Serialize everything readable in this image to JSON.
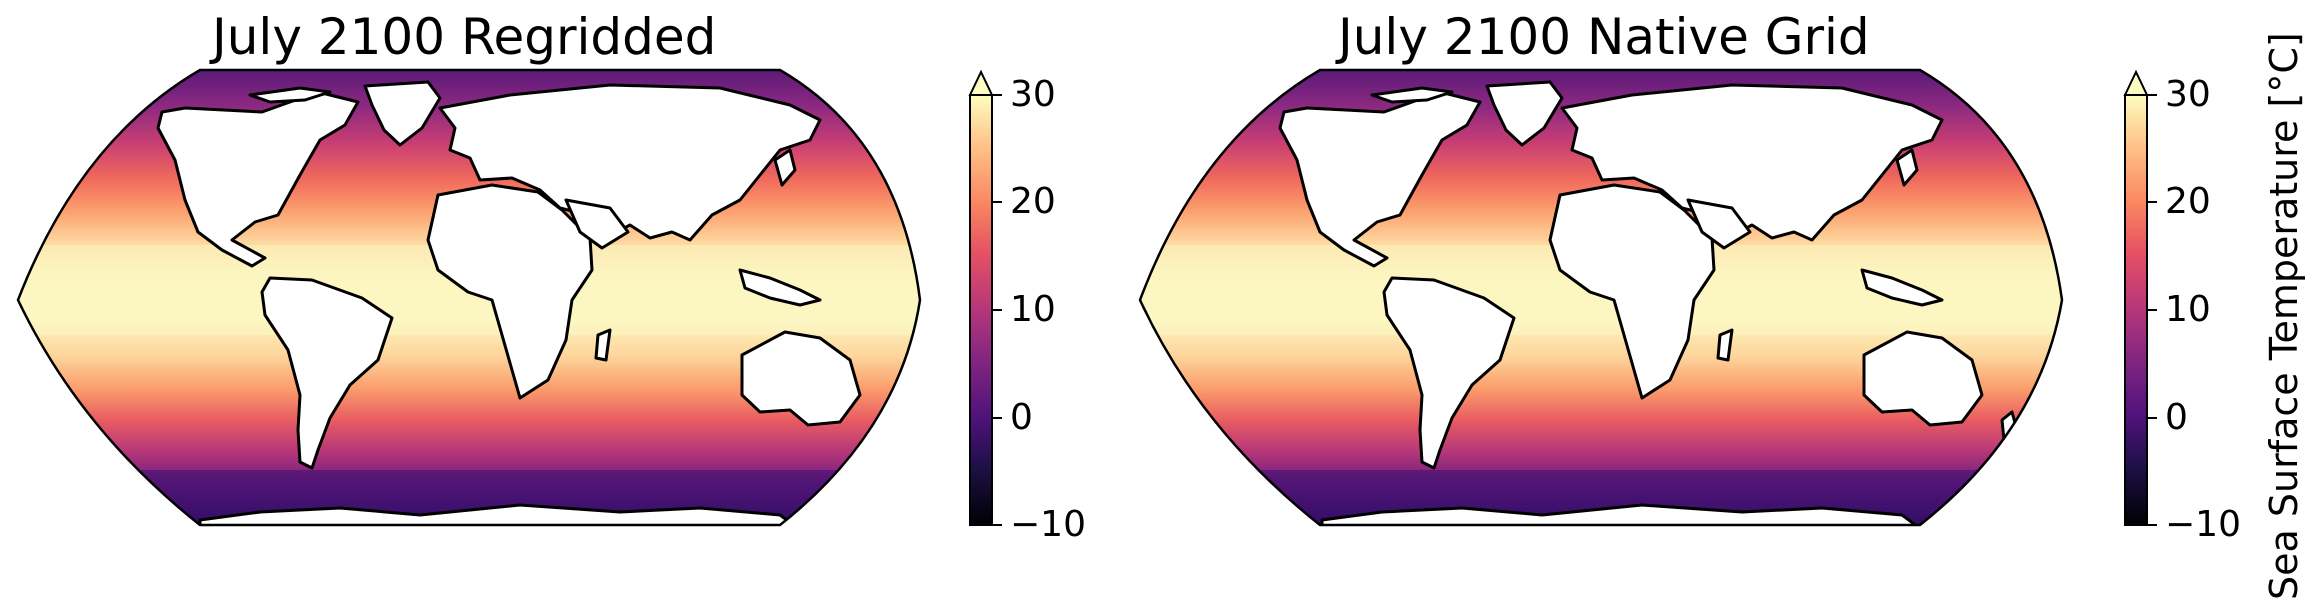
{
  "maps": [
    {
      "title": "July 2100 Regridded"
    },
    {
      "title": "July 2100 Native Grid"
    }
  ],
  "colorbar": {
    "ticks": [
      "30",
      "20",
      "10",
      "0",
      "−10"
    ],
    "label": "Sea Surface Temperature [°C]",
    "vmin": -10,
    "vmax": 30,
    "extend": "max",
    "colormap": [
      "#000004",
      "#3b0f70",
      "#8c2981",
      "#de4968",
      "#fe9f6d",
      "#fcfdbf"
    ]
  },
  "colors": {
    "land": "#ffffff",
    "coastline": "#000000"
  }
}
